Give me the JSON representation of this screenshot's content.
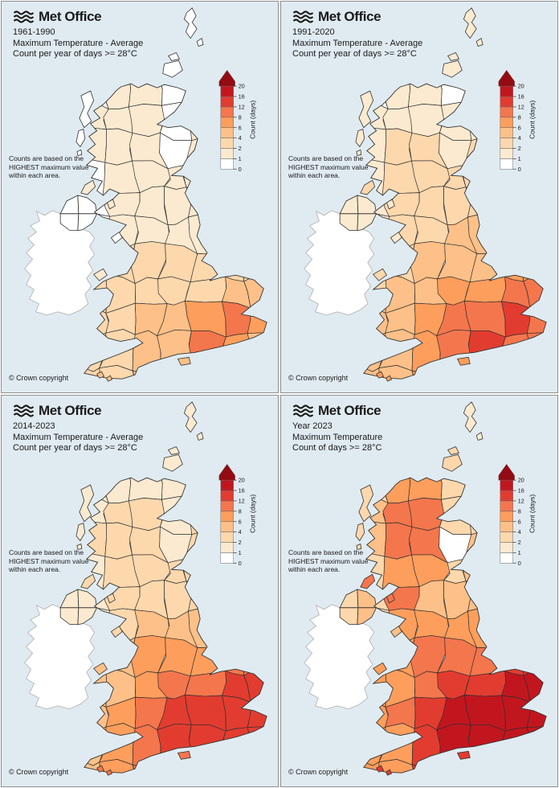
{
  "common": {
    "logo_text": "Met Office",
    "note_lines": [
      "Counts are based on the",
      "HIGHEST maximum value",
      "within each area."
    ],
    "copyright": "© Crown copyright",
    "legend": {
      "label": "Count (days)",
      "ticks": [
        "0",
        "1",
        "2",
        "4",
        "6",
        "8",
        "12",
        "16",
        "20"
      ]
    },
    "colors": {
      "sea": "#e0ebf1",
      "panel_border": "#8f8f8f",
      "county_stroke": "#2f2f2f",
      "coast_stroke": "#333333",
      "ireland_fill": "#ffffff",
      "ireland_stroke": "#b5b5b5",
      "text": "#1a1a1a",
      "palette": [
        "#ffffff",
        "#fcead0",
        "#fdd8ad",
        "#fdc088",
        "#fd9e5c",
        "#f4764d",
        "#e23c30",
        "#c2161f",
        "#930b13"
      ]
    }
  },
  "panels": [
    {
      "id": "1961-1990",
      "title_lines": [
        "1961-1990",
        "Maximum Temperature - Average",
        "Count per year of days >= 28°C"
      ],
      "grid": [
        [
          0,
          1,
          1,
          0,
          0,
          0,
          0
        ],
        [
          1,
          1,
          1,
          0,
          1,
          1,
          1
        ],
        [
          1,
          1,
          1,
          0,
          1,
          1,
          1
        ],
        [
          0,
          1,
          1,
          1,
          1,
          1,
          1
        ],
        [
          0,
          1,
          1,
          1,
          1,
          1,
          1
        ],
        [
          0,
          1,
          1,
          1,
          1,
          1,
          1
        ],
        [
          1,
          2,
          2,
          2,
          2,
          2,
          2
        ],
        [
          2,
          2,
          2,
          2,
          2,
          3,
          3
        ],
        [
          2,
          2,
          3,
          3,
          4,
          5,
          4
        ],
        [
          2,
          2,
          3,
          3,
          5,
          4,
          3
        ],
        [
          2,
          2,
          3,
          3,
          3,
          3,
          3
        ]
      ],
      "islands": {
        "shetland": 0,
        "orkney": 0,
        "hebrides": 0,
        "man": 0,
        "anglesey": 1,
        "wight": 3,
        "arran": 1,
        "islay": 1,
        "channel": 3
      },
      "ni": [
        0,
        0,
        0,
        0
      ]
    },
    {
      "id": "1991-2020",
      "title_lines": [
        "1991-2020",
        "Maximum Temperature - Average",
        "Count per year of days >= 28°C"
      ],
      "grid": [
        [
          0,
          1,
          1,
          0,
          1,
          1,
          1
        ],
        [
          1,
          1,
          1,
          1,
          1,
          1,
          1
        ],
        [
          1,
          2,
          2,
          1,
          2,
          2,
          2
        ],
        [
          1,
          2,
          2,
          2,
          2,
          2,
          2
        ],
        [
          1,
          2,
          2,
          2,
          2,
          2,
          2
        ],
        [
          1,
          2,
          2,
          3,
          3,
          3,
          3
        ],
        [
          2,
          2,
          3,
          3,
          3,
          4,
          4
        ],
        [
          2,
          3,
          3,
          4,
          4,
          5,
          5
        ],
        [
          3,
          3,
          4,
          5,
          5,
          6,
          5
        ],
        [
          3,
          3,
          4,
          5,
          6,
          5,
          5
        ],
        [
          3,
          3,
          4,
          4,
          5,
          5,
          5
        ]
      ],
      "islands": {
        "shetland": 1,
        "orkney": 1,
        "hebrides": 1,
        "man": 1,
        "anglesey": 2,
        "wight": 4,
        "arran": 1,
        "islay": 2,
        "channel": 4
      },
      "ni": [
        1,
        1,
        1,
        1
      ]
    },
    {
      "id": "2014-2023",
      "title_lines": [
        "2014-2023",
        "Maximum Temperature - Average",
        "Count per year of days >= 28°C"
      ],
      "grid": [
        [
          1,
          1,
          1,
          1,
          1,
          1,
          1
        ],
        [
          1,
          2,
          2,
          1,
          2,
          2,
          2
        ],
        [
          2,
          2,
          2,
          1,
          2,
          2,
          2
        ],
        [
          1,
          2,
          2,
          2,
          2,
          2,
          2
        ],
        [
          1,
          2,
          2,
          2,
          2,
          2,
          2
        ],
        [
          1,
          2,
          3,
          3,
          3,
          3,
          3
        ],
        [
          2,
          3,
          4,
          4,
          4,
          5,
          5
        ],
        [
          3,
          3,
          4,
          5,
          5,
          6,
          6
        ],
        [
          3,
          4,
          5,
          6,
          6,
          6,
          6
        ],
        [
          3,
          4,
          5,
          6,
          6,
          6,
          6
        ],
        [
          3,
          4,
          5,
          5,
          6,
          6,
          6
        ]
      ],
      "islands": {
        "shetland": 1,
        "orkney": 1,
        "hebrides": 1,
        "man": 2,
        "anglesey": 3,
        "wight": 5,
        "arran": 2,
        "islay": 2,
        "channel": 5
      },
      "ni": [
        1,
        1,
        1,
        1
      ]
    },
    {
      "id": "Year 2023",
      "title_lines": [
        "Year 2023",
        "Maximum Temperature",
        "Count of days >= 28°C"
      ],
      "grid": [
        [
          2,
          4,
          4,
          2,
          2,
          2,
          2
        ],
        [
          3,
          5,
          5,
          2,
          2,
          2,
          2
        ],
        [
          3,
          5,
          5,
          0,
          3,
          3,
          3
        ],
        [
          2,
          4,
          4,
          2,
          3,
          3,
          3
        ],
        [
          2,
          5,
          3,
          3,
          3,
          3,
          3
        ],
        [
          2,
          4,
          4,
          4,
          4,
          4,
          4
        ],
        [
          3,
          4,
          5,
          5,
          5,
          6,
          6
        ],
        [
          4,
          4,
          5,
          6,
          6,
          7,
          7
        ],
        [
          4,
          5,
          6,
          7,
          7,
          7,
          7
        ],
        [
          4,
          4,
          6,
          7,
          7,
          7,
          7
        ],
        [
          4,
          4,
          6,
          6,
          7,
          7,
          7
        ]
      ],
      "islands": {
        "shetland": 1,
        "orkney": 2,
        "hebrides": 2,
        "man": 3,
        "anglesey": 4,
        "wight": 6,
        "arran": 5,
        "islay": 5,
        "channel": 6
      },
      "ni": [
        2,
        3,
        2,
        3
      ]
    }
  ],
  "chart_data": {
    "type": "heatmap",
    "title": "Met Office UK county choropleths: count of days with maximum temperature >= 28°C",
    "legend_label": "Count (days)",
    "legend_ticks": [
      0,
      1,
      2,
      4,
      6,
      8,
      12,
      16,
      20
    ],
    "panels": [
      "1961-1990 average per year",
      "1991-2020 average per year",
      "2014-2023 average per year",
      "Year 2023 count"
    ],
    "note": "Counts are based on the HIGHEST maximum value within each area."
  }
}
